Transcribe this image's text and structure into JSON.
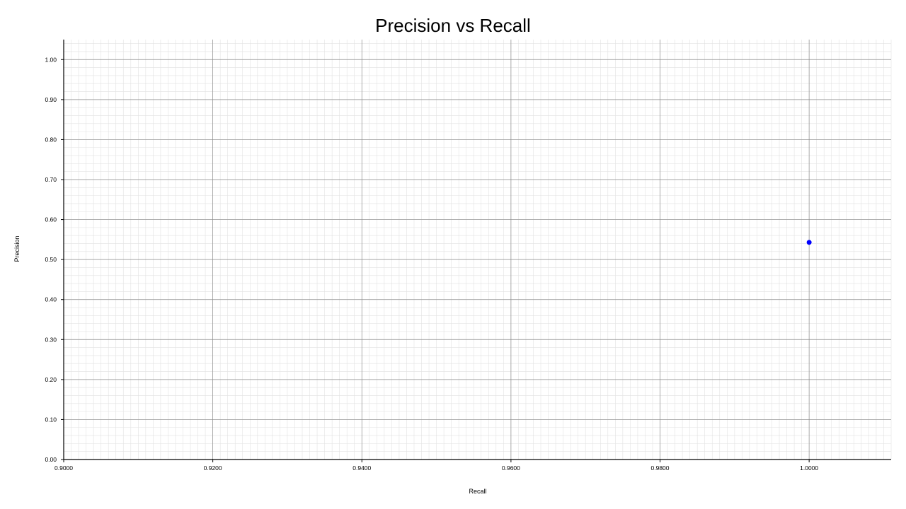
{
  "chart_data": {
    "type": "scatter",
    "title": "Precision vs Recall",
    "xlabel": "Recall",
    "ylabel": "Precision",
    "xlim": [
      0.9,
      1.011
    ],
    "ylim": [
      0.0,
      1.05
    ],
    "x_ticks": [
      0.9,
      0.92,
      0.94,
      0.96,
      0.98,
      1.0
    ],
    "x_tick_labels": [
      "0.9000",
      "0.9200",
      "0.9400",
      "0.9600",
      "0.9800",
      "1.0000"
    ],
    "y_ticks": [
      0.0,
      0.1,
      0.2,
      0.3,
      0.4,
      0.5,
      0.6,
      0.7,
      0.8,
      0.9,
      1.0
    ],
    "y_tick_labels": [
      "0.00",
      "0.10",
      "0.20",
      "0.30",
      "0.40",
      "0.50",
      "0.60",
      "0.70",
      "0.80",
      "0.90",
      "1.00"
    ],
    "grid": true,
    "minor_grid": true,
    "legend": "none",
    "series": [
      {
        "color": "#0000ff",
        "points": [
          {
            "x": 1.0,
            "y": 0.543
          }
        ]
      }
    ],
    "colors": {
      "major_grid": "#8c8c8c",
      "minor_grid": "#e2e2e2",
      "axis": "#000000",
      "point": "#0000ff"
    }
  }
}
